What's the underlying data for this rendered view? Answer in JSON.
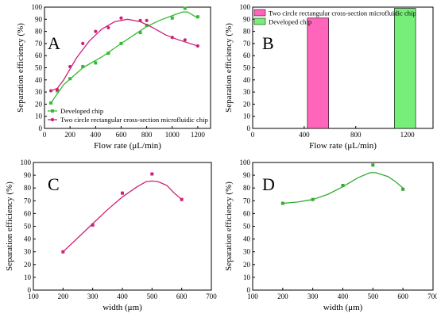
{
  "chart_data": [
    {
      "panel": "A",
      "type": "line",
      "xlabel": "Flow rate (μL/min)",
      "ylabel": "Separation efficiency (%)",
      "xlim": [
        0,
        1300
      ],
      "ylim": [
        0,
        100
      ],
      "xticks": [
        0,
        200,
        400,
        600,
        800,
        1000,
        1200
      ],
      "yticks": [
        0,
        10,
        20,
        30,
        40,
        50,
        60,
        70,
        80,
        90,
        100
      ],
      "legend": "bottom-left",
      "series": [
        {
          "name": "Developed chip",
          "color": "#33bb33",
          "marker": "square",
          "x": [
            50,
            100,
            200,
            300,
            400,
            500,
            600,
            750,
            800,
            1000,
            1100,
            1200
          ],
          "y": [
            21,
            31,
            41,
            51,
            54,
            62,
            70,
            79,
            85,
            91,
            99,
            92
          ],
          "curve": [
            [
              50,
              21
            ],
            [
              150,
              36
            ],
            [
              300,
              50
            ],
            [
              450,
              59
            ],
            [
              600,
              70
            ],
            [
              700,
              77
            ],
            [
              800,
              84
            ],
            [
              900,
              89
            ],
            [
              1000,
              93
            ],
            [
              1080,
              96
            ],
            [
              1120,
              96
            ],
            [
              1200,
              91
            ]
          ]
        },
        {
          "name": "Two circle rectangular cross-section microfluidic chip",
          "color": "#cc2277",
          "marker": "circle",
          "x": [
            50,
            100,
            200,
            300,
            400,
            500,
            600,
            750,
            800,
            1000,
            1100,
            1200
          ],
          "y": [
            31,
            32,
            51,
            70,
            80,
            83,
            91,
            89,
            89,
            75,
            73,
            68
          ],
          "curve": [
            [
              50,
              31
            ],
            [
              100,
              33
            ],
            [
              150,
              40
            ],
            [
              250,
              58
            ],
            [
              350,
              72
            ],
            [
              450,
              82
            ],
            [
              550,
              88
            ],
            [
              650,
              90
            ],
            [
              750,
              88
            ],
            [
              850,
              83
            ],
            [
              950,
              77
            ],
            [
              1050,
              73
            ],
            [
              1200,
              68
            ]
          ]
        }
      ]
    },
    {
      "panel": "B",
      "type": "bar",
      "xlabel": "Flow rate (μL/min)",
      "ylabel": "Separation efficiency (%)",
      "xlim": [
        0,
        1400
      ],
      "ylim": [
        0,
        100
      ],
      "xticks": [
        0,
        400,
        800,
        1200
      ],
      "yticks": [
        0,
        10,
        20,
        30,
        40,
        50,
        60,
        70,
        80,
        90,
        100
      ],
      "legend": "top-left",
      "bars": [
        {
          "name": "Two circle rectangular cross-section microfluidic chip",
          "x0": 425,
          "x1": 590,
          "value": 91,
          "color": "#ff66bb"
        },
        {
          "name": "Developed chip",
          "x0": 1100,
          "x1": 1265,
          "value": 99,
          "color": "#77ee77"
        }
      ]
    },
    {
      "panel": "C",
      "type": "scatter",
      "xlabel": "width (μm)",
      "ylabel": "Separation efficiency (%)",
      "xlim": [
        100,
        700
      ],
      "ylim": [
        0,
        100
      ],
      "xticks": [
        100,
        200,
        300,
        400,
        500,
        600,
        700
      ],
      "yticks": [
        0,
        10,
        20,
        30,
        40,
        50,
        60,
        70,
        80,
        90,
        100
      ],
      "series": [
        {
          "color": "#cc2277",
          "marker": "square",
          "x": [
            200,
            300,
            400,
            500,
            600
          ],
          "y": [
            30,
            51,
            76,
            91,
            71
          ],
          "curve": [
            [
              200,
              30
            ],
            [
              250,
              41
            ],
            [
              300,
              52
            ],
            [
              350,
              63
            ],
            [
              400,
              73
            ],
            [
              450,
              81
            ],
            [
              480,
              85
            ],
            [
              500,
              85.5
            ],
            [
              520,
              85
            ],
            [
              550,
              82
            ],
            [
              575,
              76
            ],
            [
              600,
              71
            ]
          ]
        }
      ]
    },
    {
      "panel": "D",
      "type": "scatter",
      "xlabel": "width (μm)",
      "ylabel": "Separation efficiency (%)",
      "xlim": [
        100,
        700
      ],
      "ylim": [
        0,
        100
      ],
      "xticks": [
        100,
        200,
        300,
        400,
        500,
        600,
        700
      ],
      "yticks": [
        0,
        10,
        20,
        30,
        40,
        50,
        60,
        70,
        80,
        90,
        100
      ],
      "series": [
        {
          "color": "#33aa33",
          "marker": "square",
          "x": [
            200,
            300,
            400,
            500,
            600
          ],
          "y": [
            68,
            71,
            82,
            98,
            79
          ],
          "curve": [
            [
              200,
              68
            ],
            [
              250,
              69
            ],
            [
              300,
              71
            ],
            [
              350,
              75
            ],
            [
              400,
              81
            ],
            [
              450,
              88
            ],
            [
              490,
              92
            ],
            [
              510,
              92
            ],
            [
              550,
              89
            ],
            [
              575,
              85
            ],
            [
              600,
              80
            ]
          ]
        }
      ]
    }
  ]
}
